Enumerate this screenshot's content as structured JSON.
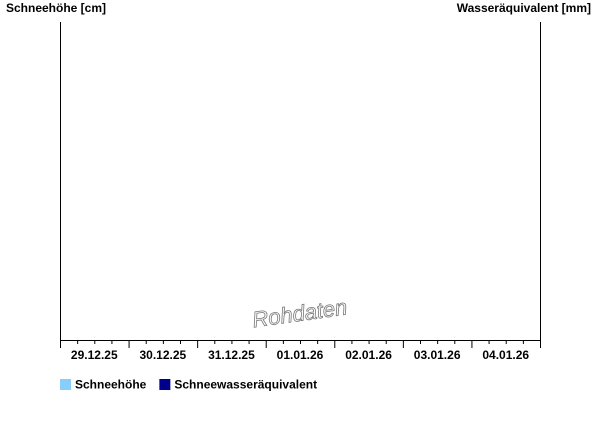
{
  "chart_data": {
    "type": "line",
    "y_label": "Schneehöhe [cm]",
    "y2_label": "Wasseräquivalent [mm]",
    "watermark": "Rohdaten",
    "categories": [
      "29.12.25",
      "30.12.25",
      "31.12.25",
      "01.01.26",
      "02.01.26",
      "03.01.26",
      "04.01.26"
    ],
    "series": [
      {
        "name": "Schneehöhe",
        "color": "#87cefa",
        "values": [
          null,
          null,
          null,
          null,
          null,
          null,
          null
        ]
      },
      {
        "name": "Schneewasseräquivalent",
        "color": "#00008b",
        "axis": "y2",
        "values": [
          null,
          null,
          null,
          null,
          null,
          null,
          null
        ]
      }
    ]
  }
}
